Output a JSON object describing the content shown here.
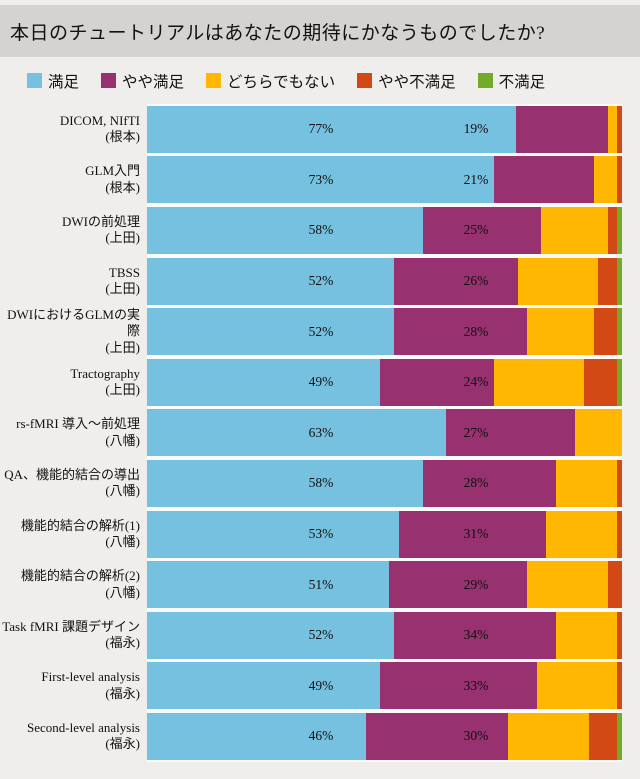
{
  "title": "本日のチュートリアルはあなたの期待にかなうものでしたか?",
  "colors": {
    "background": "#EFEEEC",
    "title_band": "#D4D3D2",
    "bar_gap": "#FAFAF9"
  },
  "legend": [
    {
      "key": "satisfied",
      "label": "満足",
      "color": "#76C1DF"
    },
    {
      "key": "somewhat-satisfied",
      "label": "やや満足",
      "color": "#97316F"
    },
    {
      "key": "neutral",
      "label": "どちらでもない",
      "color": "#FFB702"
    },
    {
      "key": "somewhat-dissatisfied",
      "label": "やや不満足",
      "color": "#D24916"
    },
    {
      "key": "dissatisfied",
      "label": "不満足",
      "color": "#73AA29"
    }
  ],
  "chart_data": {
    "type": "bar",
    "orientation": "horizontal",
    "stacked": true,
    "unit": "%",
    "axis_range": [
      0,
      100
    ],
    "grid": false,
    "legend_position": "top",
    "series_names": [
      "満足",
      "やや満足",
      "どちらでもない",
      "やや不満足",
      "不満足"
    ],
    "rows": [
      {
        "name": "DICOM, NIfTI",
        "speaker": "(根本)",
        "values": [
          77,
          19,
          2,
          1,
          0
        ],
        "labels": [
          "77%",
          "19%"
        ]
      },
      {
        "name": "GLM入門",
        "speaker": "(根本)",
        "values": [
          73,
          21,
          5,
          1,
          0
        ],
        "labels": [
          "73%",
          "21%"
        ]
      },
      {
        "name": "DWIの前処理",
        "speaker": "(上田)",
        "values": [
          58,
          25,
          14,
          2,
          1
        ],
        "labels": [
          "58%",
          "25%"
        ]
      },
      {
        "name": "TBSS",
        "speaker": "(上田)",
        "values": [
          52,
          26,
          17,
          4,
          1
        ],
        "labels": [
          "52%",
          "26%"
        ]
      },
      {
        "name": "DWIにおけるGLMの実際",
        "speaker": "(上田)",
        "values": [
          52,
          28,
          14,
          5,
          1
        ],
        "labels": [
          "52%",
          "28%"
        ]
      },
      {
        "name": "Tractography",
        "speaker": "(上田)",
        "values": [
          49,
          24,
          19,
          7,
          1
        ],
        "labels": [
          "49%",
          "24%"
        ]
      },
      {
        "name": "rs-fMRI 導入〜前処理",
        "speaker": "(八幡)",
        "values": [
          63,
          27,
          10,
          0,
          0
        ],
        "labels": [
          "63%",
          "27%"
        ]
      },
      {
        "name": "QA、機能的結合の導出",
        "speaker": "(八幡)",
        "values": [
          58,
          28,
          13,
          1,
          0
        ],
        "labels": [
          "58%",
          "28%"
        ]
      },
      {
        "name": "機能的結合の解析(1)",
        "speaker": "(八幡)",
        "values": [
          53,
          31,
          15,
          1,
          0
        ],
        "labels": [
          "53%",
          "31%"
        ]
      },
      {
        "name": "機能的結合の解析(2)",
        "speaker": "(八幡)",
        "values": [
          51,
          29,
          17,
          3,
          0
        ],
        "labels": [
          "51%",
          "29%"
        ]
      },
      {
        "name": "Task fMRI 課題デザイン",
        "speaker": "(福永)",
        "values": [
          52,
          34,
          13,
          1,
          0
        ],
        "labels": [
          "52%",
          "34%"
        ]
      },
      {
        "name": "First-level analysis",
        "speaker": "(福永)",
        "values": [
          49,
          33,
          17,
          1,
          0
        ],
        "labels": [
          "49%",
          "33%"
        ]
      },
      {
        "name": "Second-level analysis",
        "speaker": "(福永)",
        "values": [
          46,
          30,
          17,
          6,
          1
        ],
        "labels": [
          "46%",
          "30%"
        ]
      }
    ]
  }
}
